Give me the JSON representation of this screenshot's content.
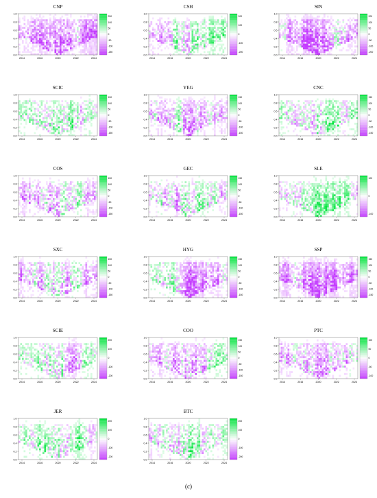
{
  "figure": {
    "caption": "(c)"
  },
  "colors": {
    "positive": "#00e53d",
    "negative": "#c43cff",
    "neutral": "#ffffff"
  },
  "chart_data": [
    {
      "type": "heatmap",
      "title": "CNP",
      "x_ticks": [
        "2014",
        "2016",
        "2020",
        "2022",
        "2024"
      ],
      "y_ticks": [
        "0.0",
        "0.2",
        "0.4",
        "0.6",
        "0.8",
        "1.0"
      ],
      "legend_ticks": [
        "250",
        "100",
        "50",
        "0",
        "-50",
        "-100",
        "-250"
      ],
      "dominance": -0.35
    },
    {
      "type": "heatmap",
      "title": "CSH",
      "x_ticks": [
        "2014",
        "2016",
        "2020",
        "2022",
        "2024"
      ],
      "y_ticks": [
        "0.0",
        "0.2",
        "0.4",
        "0.6",
        "0.8",
        "1.0"
      ],
      "legend_ticks": [
        "200",
        "100",
        "0",
        "-100",
        "-200"
      ],
      "dominance": 0.05
    },
    {
      "type": "heatmap",
      "title": "SIN",
      "x_ticks": [
        "2014",
        "2016",
        "2020",
        "2022",
        "2024"
      ],
      "y_ticks": [
        "0.0",
        "0.2",
        "0.4",
        "0.6",
        "0.8",
        "1.0"
      ],
      "legend_ticks": [
        "200",
        "100",
        "50",
        "0",
        "-50",
        "-100",
        "-200"
      ],
      "dominance": -0.45
    },
    {
      "type": "heatmap",
      "title": "SCIC",
      "x_ticks": [
        "2014",
        "2016",
        "2020",
        "2022",
        "2024"
      ],
      "y_ticks": [
        "0.0",
        "0.2",
        "0.4",
        "0.6",
        "0.8",
        "1.0"
      ],
      "legend_ticks": [
        "150",
        "100",
        "50",
        "0",
        "-50",
        "-100",
        "-150"
      ],
      "dominance": 0.05
    },
    {
      "type": "heatmap",
      "title": "YEG",
      "x_ticks": [
        "2014",
        "2016",
        "2020",
        "2022",
        "2024"
      ],
      "y_ticks": [
        "0.0",
        "0.2",
        "0.4",
        "0.6",
        "0.8",
        "1.0"
      ],
      "legend_ticks": [
        "150",
        "100",
        "50",
        "0",
        "-50",
        "-100",
        "-150"
      ],
      "dominance": -0.3
    },
    {
      "type": "heatmap",
      "title": "CNC",
      "x_ticks": [
        "2014",
        "2016",
        "2020",
        "2022",
        "2024"
      ],
      "y_ticks": [
        "0.0",
        "0.2",
        "0.4",
        "0.6",
        "0.8",
        "1.0"
      ],
      "legend_ticks": [
        "150",
        "100",
        "50",
        "0",
        "-50",
        "-100",
        "-150"
      ],
      "dominance": 0.2
    },
    {
      "type": "heatmap",
      "title": "COS",
      "x_ticks": [
        "2014",
        "2016",
        "2020",
        "2022",
        "2024"
      ],
      "y_ticks": [
        "0.0",
        "0.2",
        "0.4",
        "0.6",
        "0.8",
        "1.0"
      ],
      "legend_ticks": [
        "150",
        "100",
        "50",
        "0",
        "-50",
        "-100",
        "-150"
      ],
      "dominance": -0.25
    },
    {
      "type": "heatmap",
      "title": "GEC",
      "x_ticks": [
        "2014",
        "2016",
        "2020",
        "2022",
        "2024"
      ],
      "y_ticks": [
        "0.0",
        "0.2",
        "0.4",
        "0.6",
        "0.8",
        "1.0"
      ],
      "legend_ticks": [
        "150",
        "100",
        "50",
        "0",
        "-50",
        "-100",
        "-150"
      ],
      "dominance": -0.2
    },
    {
      "type": "heatmap",
      "title": "SLE",
      "x_ticks": [
        "2014",
        "2016",
        "2020",
        "2022",
        "2024"
      ],
      "y_ticks": [
        "0.0",
        "0.2",
        "0.4",
        "0.6",
        "0.8",
        "1.0"
      ],
      "legend_ticks": [
        "100",
        "0",
        "-100"
      ],
      "dominance": 0.1
    },
    {
      "type": "heatmap",
      "title": "SXC",
      "x_ticks": [
        "2014",
        "2016",
        "2020",
        "2022",
        "2024"
      ],
      "y_ticks": [
        "0.0",
        "0.2",
        "0.4",
        "0.6",
        "0.8",
        "1.0"
      ],
      "legend_ticks": [
        "150",
        "100",
        "50",
        "0",
        "-50",
        "-100",
        "-150"
      ],
      "dominance": -0.3
    },
    {
      "type": "heatmap",
      "title": "HYG",
      "x_ticks": [
        "2014",
        "2016",
        "2020",
        "2022",
        "2024"
      ],
      "y_ticks": [
        "0.0",
        "0.2",
        "0.4",
        "0.6",
        "0.8",
        "1.0"
      ],
      "legend_ticks": [
        "150",
        "100",
        "50",
        "0",
        "-50",
        "-100",
        "-150"
      ],
      "dominance": -0.1
    },
    {
      "type": "heatmap",
      "title": "SSP",
      "x_ticks": [
        "2014",
        "2016",
        "2020",
        "2022",
        "2024"
      ],
      "y_ticks": [
        "0.0",
        "0.2",
        "0.4",
        "0.6",
        "0.8",
        "1.0"
      ],
      "legend_ticks": [
        "150",
        "100",
        "50",
        "0",
        "-50",
        "-100",
        "-150"
      ],
      "dominance": -0.4
    },
    {
      "type": "heatmap",
      "title": "SCIE",
      "x_ticks": [
        "2014",
        "2016",
        "2020",
        "2022",
        "2024"
      ],
      "y_ticks": [
        "0.0",
        "0.2",
        "0.4",
        "0.6",
        "0.8",
        "1.0"
      ],
      "legend_ticks": [
        "200",
        "100",
        "0",
        "-100",
        "-200"
      ],
      "dominance": 0.0
    },
    {
      "type": "heatmap",
      "title": "COO",
      "x_ticks": [
        "2014",
        "2016",
        "2020",
        "2022",
        "2024"
      ],
      "y_ticks": [
        "0.0",
        "0.2",
        "0.4",
        "0.6",
        "0.8",
        "1.0"
      ],
      "legend_ticks": [
        "150",
        "100",
        "50",
        "0",
        "-50",
        "-100",
        "-150"
      ],
      "dominance": -0.15
    },
    {
      "type": "heatmap",
      "title": "PTC",
      "x_ticks": [
        "2014",
        "2016",
        "2020",
        "2022",
        "2024"
      ],
      "y_ticks": [
        "0.0",
        "0.2",
        "0.4",
        "0.6",
        "0.8",
        "1.0"
      ],
      "legend_ticks": [
        "100",
        "50",
        "0",
        "-50",
        "-100"
      ],
      "dominance": -0.2
    },
    {
      "type": "heatmap",
      "title": "JER",
      "x_ticks": [
        "2014",
        "2016",
        "2020",
        "2022",
        "2024"
      ],
      "y_ticks": [
        "0.0",
        "0.2",
        "0.4",
        "0.6",
        "0.8",
        "1.0"
      ],
      "legend_ticks": [
        "200",
        "100",
        "0",
        "-100",
        "-200"
      ],
      "dominance": 0.15
    },
    {
      "type": "heatmap",
      "title": "BTC",
      "x_ticks": [
        "2014",
        "2016",
        "2020",
        "2022",
        "2024"
      ],
      "y_ticks": [
        "0.0",
        "0.2",
        "0.4",
        "0.6",
        "0.8",
        "1.0"
      ],
      "legend_ticks": [
        "200",
        "100",
        "0",
        "-100",
        "-200"
      ],
      "dominance": -0.1
    }
  ]
}
